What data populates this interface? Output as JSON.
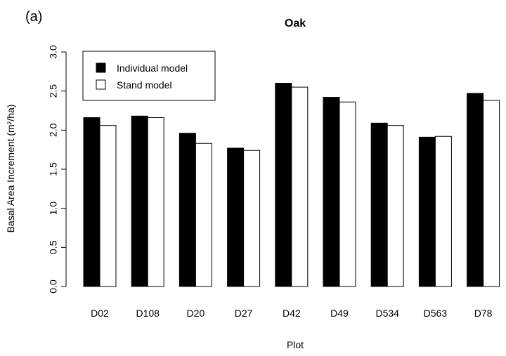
{
  "panel_label": "(a)",
  "chart_data": {
    "type": "bar",
    "title": "Oak",
    "xlabel": "Plot",
    "ylabel": "Basal Area Increment (m²/ha)",
    "categories": [
      "D02",
      "D108",
      "D20",
      "D27",
      "D42",
      "D49",
      "D534",
      "D563",
      "D78"
    ],
    "series": [
      {
        "name": "Individual model",
        "color": "#000000",
        "values": [
          2.16,
          2.18,
          1.96,
          1.77,
          2.6,
          2.42,
          2.09,
          1.91,
          2.47
        ]
      },
      {
        "name": "Stand model",
        "color": "#ffffff",
        "values": [
          2.06,
          2.16,
          1.83,
          1.74,
          2.55,
          2.36,
          2.06,
          1.92,
          2.38
        ]
      }
    ],
    "ylim": [
      0,
      3.0
    ],
    "yticks": [
      "0.0",
      "0.5",
      "1.0",
      "1.5",
      "2.0",
      "2.5",
      "3.0"
    ],
    "grid": false,
    "legend_position": "top-left"
  }
}
